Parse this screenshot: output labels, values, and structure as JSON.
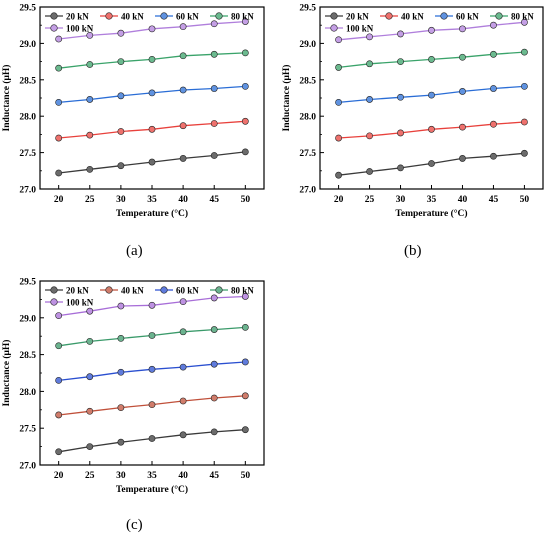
{
  "captions": [
    "(a)",
    "(b)",
    "(c)"
  ],
  "chart_data": [
    {
      "type": "line",
      "panel": "(a)",
      "xlabel": "Temperature (°C)",
      "ylabel": "Inductance (μH)",
      "x": [
        20,
        25,
        30,
        35,
        40,
        45,
        50
      ],
      "xlim": [
        17,
        53
      ],
      "ylim": [
        27.0,
        29.5
      ],
      "xticks": [
        "20",
        "25",
        "30",
        "35",
        "40",
        "45",
        "50"
      ],
      "yticks": [
        "27.0",
        "27.5",
        "28.0",
        "28.5",
        "29.0",
        "29.5"
      ],
      "grid": false,
      "legend": "top-left",
      "series": [
        {
          "name": "20 kN",
          "color": "#3a3a3a",
          "values": [
            27.22,
            27.27,
            27.32,
            27.37,
            27.42,
            27.46,
            27.51
          ]
        },
        {
          "name": "40 kN",
          "color": "#e8413c",
          "values": [
            27.7,
            27.74,
            27.79,
            27.82,
            27.87,
            27.9,
            27.93
          ]
        },
        {
          "name": "60 kN",
          "color": "#2a6dd6",
          "values": [
            28.19,
            28.23,
            28.28,
            28.32,
            28.36,
            28.38,
            28.41
          ]
        },
        {
          "name": "80 kN",
          "color": "#3aa36a",
          "values": [
            28.66,
            28.71,
            28.75,
            28.78,
            28.83,
            28.85,
            28.87
          ]
        },
        {
          "name": "100 kN",
          "color": "#b07fdc",
          "values": [
            29.06,
            29.11,
            29.14,
            29.2,
            29.23,
            29.27,
            29.3
          ]
        }
      ]
    },
    {
      "type": "line",
      "panel": "(b)",
      "xlabel": "Temperature (°C)",
      "ylabel": "Inductance (μH)",
      "x": [
        20,
        25,
        30,
        35,
        40,
        45,
        50
      ],
      "xlim": [
        17,
        53
      ],
      "ylim": [
        27.0,
        29.5
      ],
      "xticks": [
        "20",
        "25",
        "30",
        "35",
        "40",
        "45",
        "50"
      ],
      "yticks": [
        "27.0",
        "27.5",
        "28.0",
        "28.5",
        "29.0",
        "29.5"
      ],
      "grid": false,
      "legend": "top-left",
      "series": [
        {
          "name": "20 kN",
          "color": "#3a3a3a",
          "values": [
            27.19,
            27.24,
            27.29,
            27.35,
            27.42,
            27.45,
            27.49
          ]
        },
        {
          "name": "40 kN",
          "color": "#e8413c",
          "values": [
            27.7,
            27.73,
            27.77,
            27.82,
            27.85,
            27.89,
            27.92
          ]
        },
        {
          "name": "60 kN",
          "color": "#2a6dd6",
          "values": [
            28.19,
            28.23,
            28.26,
            28.29,
            28.34,
            28.38,
            28.41
          ]
        },
        {
          "name": "80 kN",
          "color": "#3aa36a",
          "values": [
            28.67,
            28.72,
            28.75,
            28.78,
            28.81,
            28.85,
            28.88
          ]
        },
        {
          "name": "100 kN",
          "color": "#b07fdc",
          "values": [
            29.05,
            29.09,
            29.13,
            29.18,
            29.2,
            29.25,
            29.29
          ]
        }
      ]
    },
    {
      "type": "line",
      "panel": "(c)",
      "xlabel": "Temperature (°C)",
      "ylabel": "Inductance (μH)",
      "x": [
        20,
        25,
        30,
        35,
        40,
        45,
        50
      ],
      "xlim": [
        17,
        53
      ],
      "ylim": [
        27.0,
        29.5
      ],
      "xticks": [
        "20",
        "25",
        "30",
        "35",
        "40",
        "45",
        "50"
      ],
      "yticks": [
        "27.0",
        "27.5",
        "28.0",
        "28.5",
        "29.0",
        "29.5"
      ],
      "grid": false,
      "legend": "top-left",
      "series": [
        {
          "name": "20 kN",
          "color": "#3a3a3a",
          "values": [
            27.18,
            27.25,
            27.31,
            27.36,
            27.41,
            27.45,
            27.48
          ]
        },
        {
          "name": "40 kN",
          "color": "#c0503a",
          "values": [
            27.68,
            27.73,
            27.78,
            27.82,
            27.87,
            27.91,
            27.94
          ]
        },
        {
          "name": "60 kN",
          "color": "#2a4fd0",
          "values": [
            28.15,
            28.2,
            28.26,
            28.3,
            28.33,
            28.37,
            28.4
          ]
        },
        {
          "name": "80 kN",
          "color": "#3a9a6a",
          "values": [
            28.62,
            28.68,
            28.72,
            28.76,
            28.81,
            28.84,
            28.87
          ]
        },
        {
          "name": "100 kN",
          "color": "#a86ed8",
          "values": [
            29.03,
            29.09,
            29.16,
            29.17,
            29.22,
            29.27,
            29.29
          ]
        }
      ]
    }
  ]
}
